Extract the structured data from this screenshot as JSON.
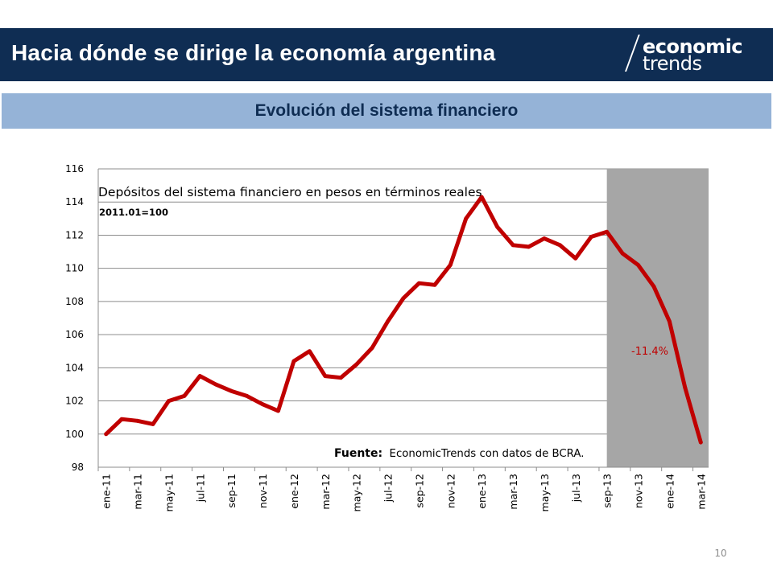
{
  "header": {
    "title": "Hacia dónde se dirige la economía argentina",
    "logo_line1": "economic",
    "logo_line2": "trends"
  },
  "section": {
    "title": "Evolución del sistema financiero"
  },
  "footer": {
    "page_number": "10"
  },
  "colors": {
    "header_bg": "#0f2d53",
    "subtitle_bg": "#95b3d7",
    "series_line": "#c00000",
    "shade": "#a6a6a6"
  },
  "chart_data": {
    "type": "line",
    "title": "Depósitos del sistema financiero en pesos en términos reales",
    "subtitle": "2011.01=100",
    "source_label": "Fuente:",
    "source_text": "EconomicTrends con datos de BCRA.",
    "annotation": "-11.4%",
    "shaded_range": [
      "sep-13",
      "mar-14"
    ],
    "ylim": [
      98,
      116
    ],
    "yticks": [
      98,
      100,
      102,
      104,
      106,
      108,
      110,
      112,
      114,
      116
    ],
    "grid": true,
    "tick_labels": [
      "ene-11",
      "mar-11",
      "may-11",
      "jul-11",
      "sep-11",
      "nov-11",
      "ene-12",
      "mar-12",
      "may-12",
      "jul-12",
      "sep-12",
      "nov-12",
      "ene-13",
      "mar-13",
      "may-13",
      "jul-13",
      "sep-13",
      "nov-13",
      "ene-14",
      "mar-14"
    ],
    "x": [
      "ene-11",
      "feb-11",
      "mar-11",
      "abr-11",
      "may-11",
      "jun-11",
      "jul-11",
      "ago-11",
      "sep-11",
      "oct-11",
      "nov-11",
      "dic-11",
      "ene-12",
      "feb-12",
      "mar-12",
      "abr-12",
      "may-12",
      "jun-12",
      "jul-12",
      "ago-12",
      "sep-12",
      "oct-12",
      "nov-12",
      "dic-12",
      "ene-13",
      "feb-13",
      "mar-13",
      "abr-13",
      "may-13",
      "jun-13",
      "jul-13",
      "ago-13",
      "sep-13",
      "oct-13",
      "nov-13",
      "dic-13",
      "ene-14",
      "feb-14",
      "mar-14"
    ],
    "series": [
      {
        "values": [
          100.0,
          100.9,
          100.8,
          100.6,
          102.0,
          102.3,
          103.5,
          103.0,
          102.6,
          102.3,
          101.8,
          101.4,
          104.4,
          105.0,
          103.5,
          103.4,
          104.2,
          105.2,
          106.8,
          108.2,
          109.1,
          109.0,
          110.2,
          113.0,
          114.3,
          112.5,
          111.4,
          111.3,
          111.8,
          111.4,
          110.6,
          111.9,
          112.2,
          110.9,
          110.2,
          108.9,
          106.8,
          102.8,
          99.5
        ]
      }
    ]
  }
}
